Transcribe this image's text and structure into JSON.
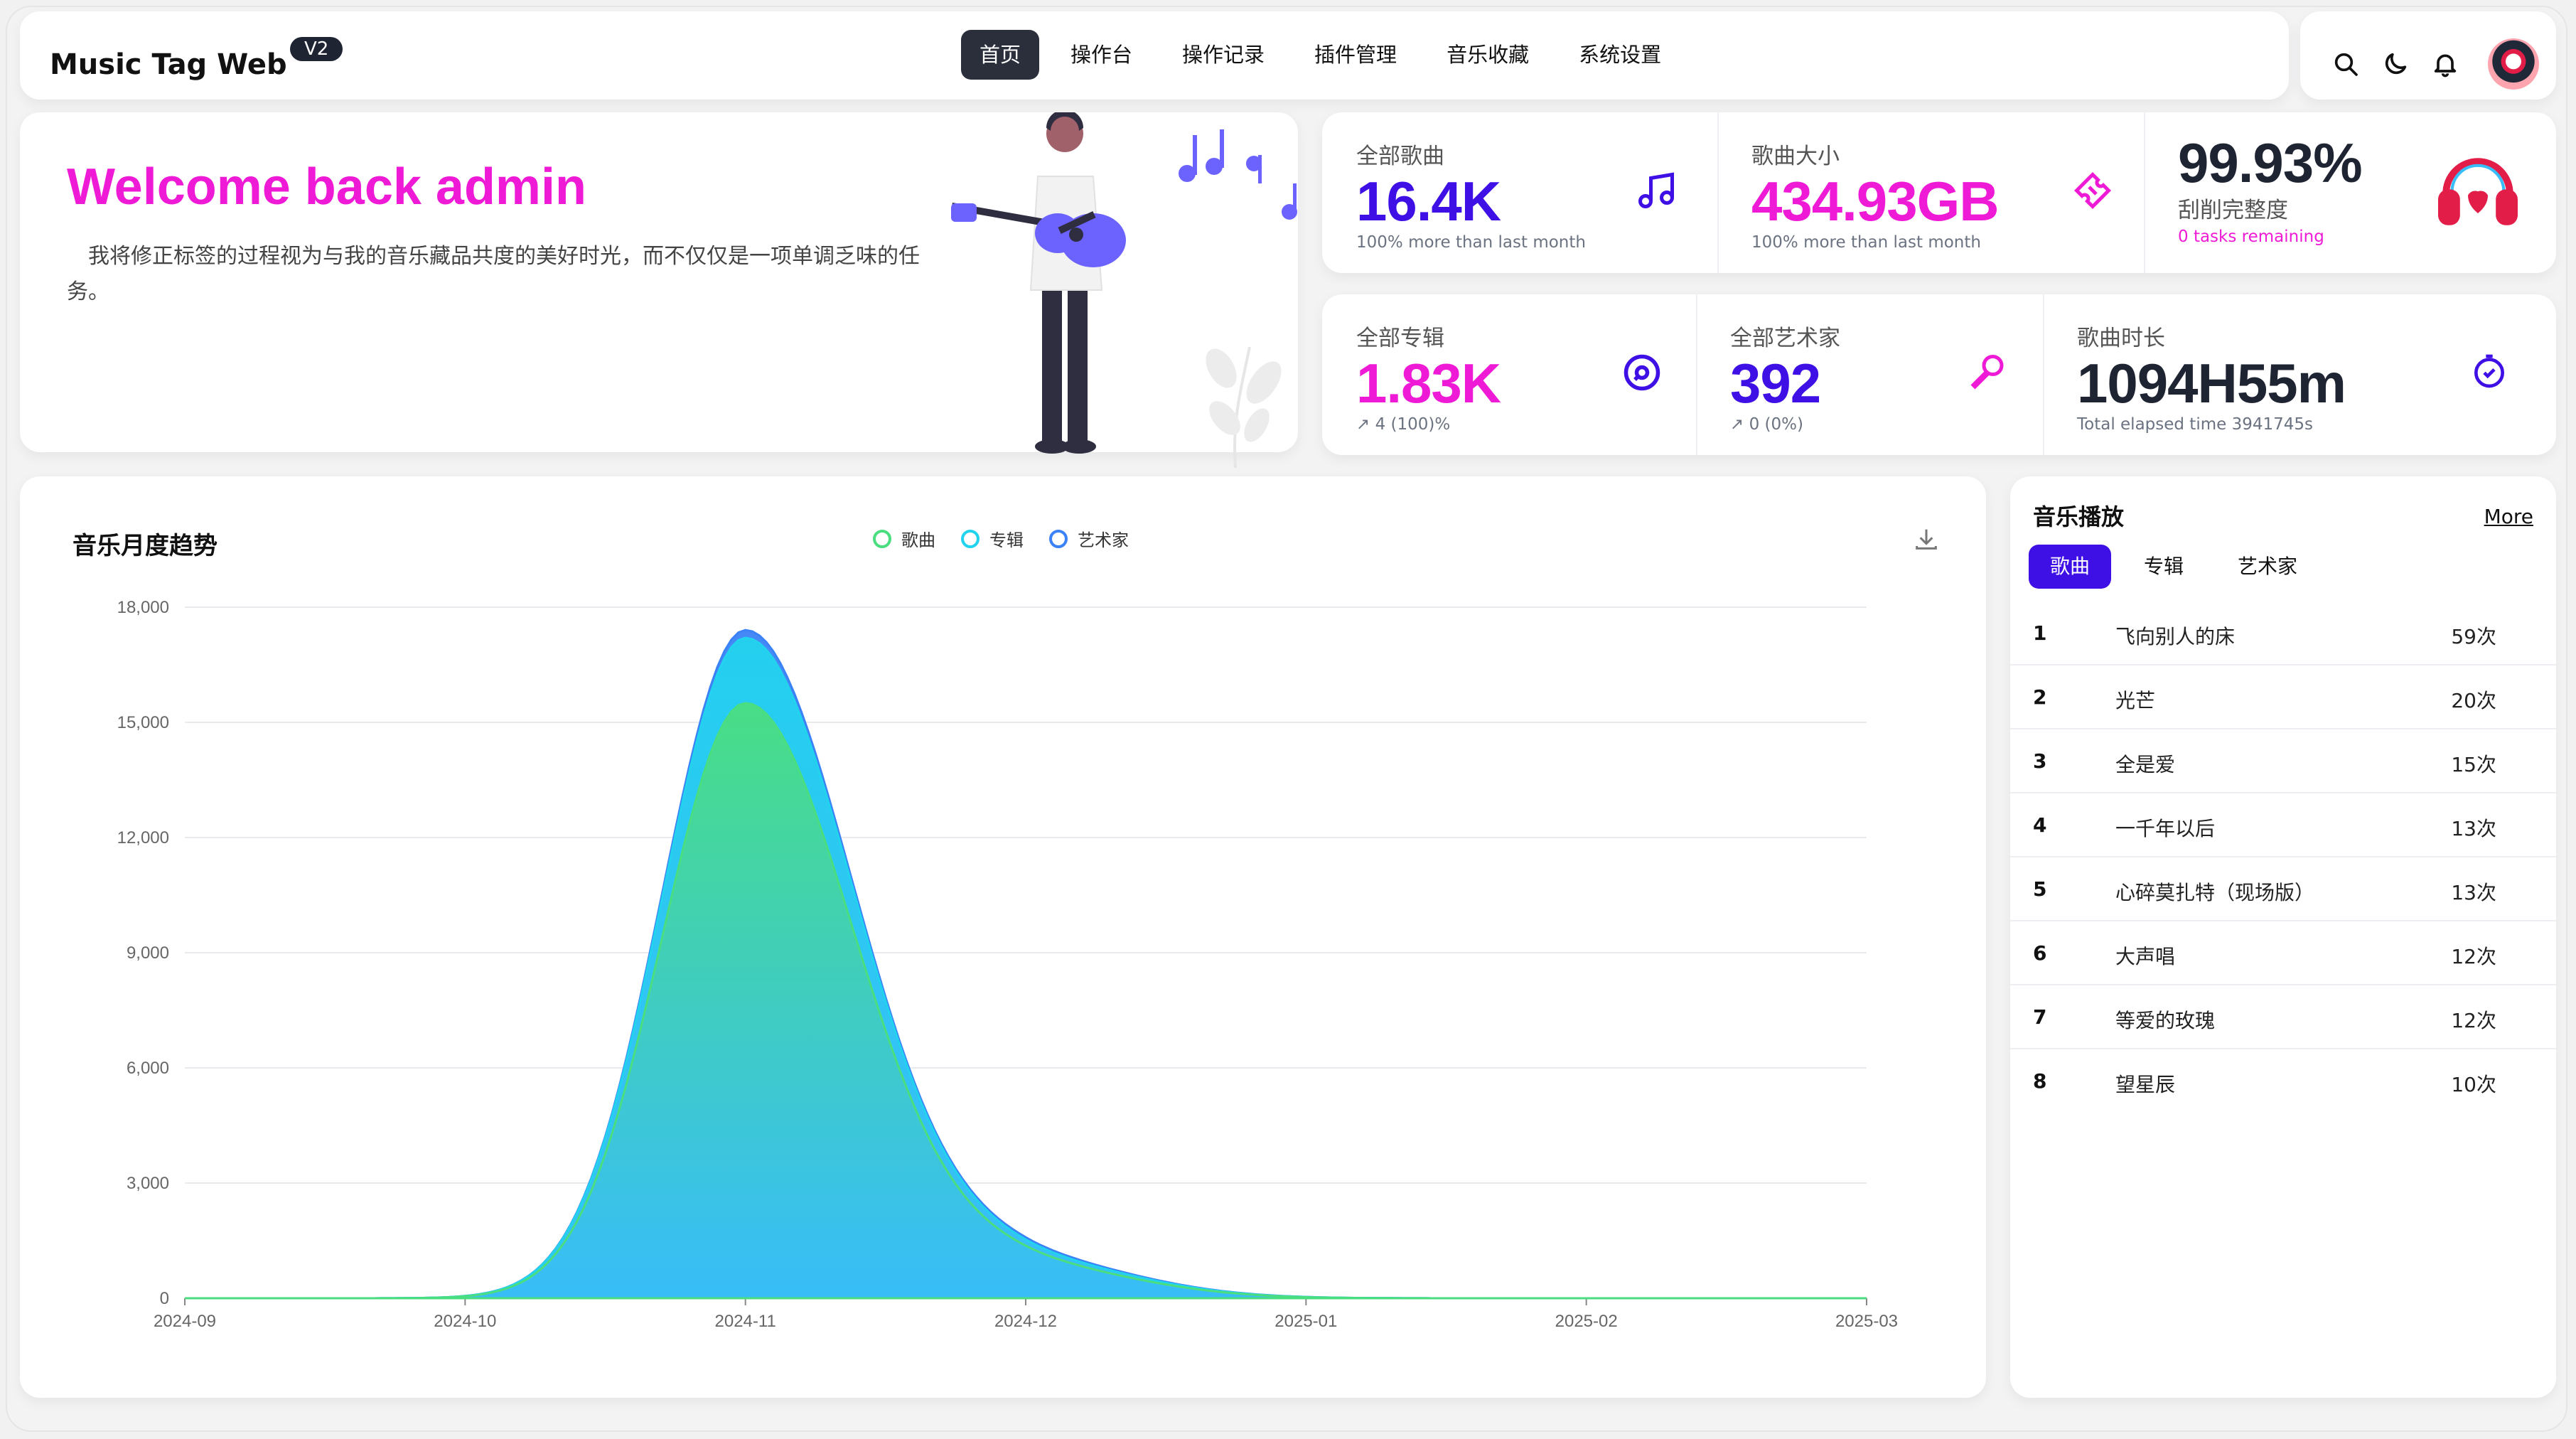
{
  "app": {
    "brand": "Music Tag Web",
    "version": "V2"
  },
  "nav": [
    {
      "label": "首页",
      "active": true
    },
    {
      "label": "操作台"
    },
    {
      "label": "操作记录"
    },
    {
      "label": "插件管理"
    },
    {
      "label": "音乐收藏"
    },
    {
      "label": "系统设置"
    }
  ],
  "welcome": {
    "title": "Welcome back admin",
    "text": "我将修正标签的过程视为与我的音乐藏品共度的美好时光，而不仅仅是一项单调乏味的任务。"
  },
  "stats_top": [
    {
      "label": "全部歌曲",
      "value": "16.4K",
      "sub": "100% more than last month",
      "icon": "music-note-icon",
      "color": "#3f10e6"
    },
    {
      "label": "歌曲大小",
      "value": "434.93GB",
      "sub": "100% more than last month",
      "icon": "ticket-icon",
      "color": "#ee1ad6"
    },
    {
      "label": "刮削完整度",
      "value": "99.93%",
      "sub": "0 tasks remaining",
      "icon": "headphones-icon",
      "color": "#1f2433"
    }
  ],
  "stats_bottom": [
    {
      "label": "全部专辑",
      "value": "1.83K",
      "sub": "↗ 4 (100)%",
      "icon": "disc-icon",
      "color": "#ee1ad6"
    },
    {
      "label": "全部艺术家",
      "value": "392",
      "sub": "↗ 0 (0%)",
      "icon": "microphone-icon",
      "color": "#3f10e6"
    },
    {
      "label": "歌曲时长",
      "value": "1094H55m",
      "sub": "Total elapsed time 3941745s",
      "icon": "stopwatch-icon",
      "color": "#1f2433"
    }
  ],
  "chart_title": "音乐月度趋势",
  "chart_data": {
    "type": "area",
    "title": "音乐月度趋势",
    "x": [
      "2024-09",
      "2024-10",
      "2024-11",
      "2024-12",
      "2025-01",
      "2025-02",
      "2025-03"
    ],
    "ylim": [
      0,
      18000
    ],
    "yticks": [
      "0",
      "3,000",
      "6,000",
      "9,000",
      "12,000",
      "15,000",
      "18,000"
    ],
    "legend_position": "top-center",
    "grid": true,
    "series": [
      {
        "name": "歌曲",
        "values": [
          0,
          0,
          15500,
          800,
          0,
          0,
          0
        ],
        "color": "#4ade80"
      },
      {
        "name": "专辑",
        "values": [
          0,
          0,
          17200,
          900,
          0,
          0,
          0
        ],
        "color": "#22d3ee"
      },
      {
        "name": "艺术家",
        "values": [
          0,
          0,
          17400,
          950,
          0,
          0,
          0
        ],
        "color": "#3b82f6"
      }
    ]
  },
  "playlist": {
    "title": "音乐播放",
    "more": "More",
    "tabs": [
      {
        "label": "歌曲",
        "active": true
      },
      {
        "label": "专辑"
      },
      {
        "label": "艺术家"
      }
    ],
    "rows": [
      {
        "rank": "1",
        "title": "飞向别人的床",
        "count": "59次"
      },
      {
        "rank": "2",
        "title": "光芒",
        "count": "20次"
      },
      {
        "rank": "3",
        "title": "全是爱",
        "count": "15次"
      },
      {
        "rank": "4",
        "title": "一千年以后",
        "count": "13次"
      },
      {
        "rank": "5",
        "title": "心碎莫扎特（现场版）",
        "count": "13次"
      },
      {
        "rank": "6",
        "title": "大声唱",
        "count": "12次"
      },
      {
        "rank": "7",
        "title": "等爱的玫瑰",
        "count": "12次"
      },
      {
        "rank": "8",
        "title": "望星辰",
        "count": "10次"
      }
    ]
  }
}
